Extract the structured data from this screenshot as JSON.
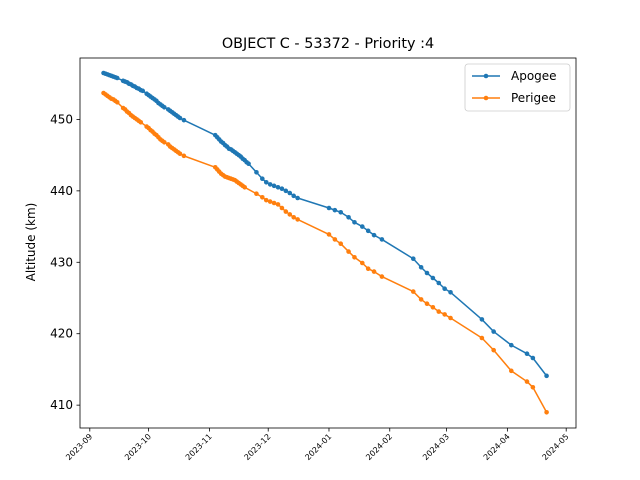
{
  "chart_data": {
    "type": "line",
    "title": "OBJECT C - 53372 - Priority :4",
    "xlabel": "",
    "ylabel": "Altitude (km)",
    "xlim": [
      "2023-08-27",
      "2024-05-06"
    ],
    "ylim": [
      406.8,
      458.6
    ],
    "x_ticks": [
      "2023-09",
      "2023-10",
      "2023-11",
      "2023-12",
      "2024-01",
      "2024-02",
      "2024-03",
      "2024-04",
      "2024-05"
    ],
    "y_ticks": [
      410,
      420,
      430,
      440,
      450
    ],
    "grid": false,
    "legend_position": "top-right",
    "series": [
      {
        "name": "Apogee",
        "color": "#1f77b4",
        "marker": "circle",
        "points": [
          [
            "2023-09-08",
            456.5
          ],
          [
            "2023-09-09",
            456.4
          ],
          [
            "2023-09-10",
            456.3
          ],
          [
            "2023-09-11",
            456.2
          ],
          [
            "2023-09-12",
            456.1
          ],
          [
            "2023-09-13",
            456.0
          ],
          [
            "2023-09-14",
            455.9
          ],
          [
            "2023-09-15",
            455.8
          ],
          [
            "2023-09-18",
            455.4
          ],
          [
            "2023-09-19",
            455.3
          ],
          [
            "2023-09-20",
            455.2
          ],
          [
            "2023-09-21",
            455.0
          ],
          [
            "2023-09-22",
            454.9
          ],
          [
            "2023-09-23",
            454.7
          ],
          [
            "2023-09-24",
            454.6
          ],
          [
            "2023-09-25",
            454.4
          ],
          [
            "2023-09-26",
            454.3
          ],
          [
            "2023-09-27",
            454.1
          ],
          [
            "2023-09-28",
            454.0
          ],
          [
            "2023-09-30",
            453.6
          ],
          [
            "2023-10-01",
            453.4
          ],
          [
            "2023-10-02",
            453.2
          ],
          [
            "2023-10-03",
            453.0
          ],
          [
            "2023-10-04",
            452.8
          ],
          [
            "2023-10-05",
            452.6
          ],
          [
            "2023-10-06",
            452.3
          ],
          [
            "2023-10-07",
            452.1
          ],
          [
            "2023-10-08",
            451.9
          ],
          [
            "2023-10-09",
            451.7
          ],
          [
            "2023-10-11",
            451.4
          ],
          [
            "2023-10-12",
            451.2
          ],
          [
            "2023-10-13",
            451.0
          ],
          [
            "2023-10-14",
            450.8
          ],
          [
            "2023-10-15",
            450.6
          ],
          [
            "2023-10-16",
            450.4
          ],
          [
            "2023-10-17",
            450.2
          ],
          [
            "2023-10-19",
            449.9
          ],
          [
            "2023-11-04",
            447.8
          ],
          [
            "2023-11-05",
            447.5
          ],
          [
            "2023-11-06",
            447.2
          ],
          [
            "2023-11-07",
            446.9
          ],
          [
            "2023-11-08",
            446.7
          ],
          [
            "2023-11-09",
            446.4
          ],
          [
            "2023-11-10",
            446.2
          ],
          [
            "2023-11-11",
            445.9
          ],
          [
            "2023-11-12",
            445.8
          ],
          [
            "2023-11-13",
            445.6
          ],
          [
            "2023-11-14",
            445.4
          ],
          [
            "2023-11-15",
            445.2
          ],
          [
            "2023-11-16",
            445.0
          ],
          [
            "2023-11-17",
            444.8
          ],
          [
            "2023-11-18",
            444.5
          ],
          [
            "2023-11-19",
            444.3
          ],
          [
            "2023-11-20",
            444.0
          ],
          [
            "2023-11-21",
            443.8
          ],
          [
            "2023-11-25",
            442.6
          ],
          [
            "2023-11-28",
            441.7
          ],
          [
            "2023-11-30",
            441.2
          ],
          [
            "2023-12-02",
            440.9
          ],
          [
            "2023-12-04",
            440.7
          ],
          [
            "2023-12-06",
            440.5
          ],
          [
            "2023-12-08",
            440.3
          ],
          [
            "2023-12-10",
            440.0
          ],
          [
            "2023-12-12",
            439.7
          ],
          [
            "2023-12-14",
            439.3
          ],
          [
            "2023-12-16",
            439.0
          ],
          [
            "2024-01-01",
            437.6
          ],
          [
            "2024-01-04",
            437.3
          ],
          [
            "2024-01-07",
            437.0
          ],
          [
            "2024-01-11",
            436.3
          ],
          [
            "2024-01-14",
            435.6
          ],
          [
            "2024-01-18",
            435.0
          ],
          [
            "2024-01-21",
            434.4
          ],
          [
            "2024-01-24",
            433.8
          ],
          [
            "2024-01-28",
            433.2
          ],
          [
            "2024-02-13",
            430.5
          ],
          [
            "2024-02-17",
            429.3
          ],
          [
            "2024-02-20",
            428.5
          ],
          [
            "2024-02-23",
            427.8
          ],
          [
            "2024-02-26",
            427.1
          ],
          [
            "2024-02-29",
            426.3
          ],
          [
            "2024-03-03",
            425.8
          ],
          [
            "2024-03-19",
            422.0
          ],
          [
            "2024-03-25",
            420.3
          ],
          [
            "2024-04-03",
            418.4
          ],
          [
            "2024-04-11",
            417.2
          ],
          [
            "2024-04-14",
            416.6
          ],
          [
            "2024-04-21",
            414.1
          ]
        ]
      },
      {
        "name": "Perigee",
        "color": "#ff7f0e",
        "marker": "circle",
        "points": [
          [
            "2023-09-08",
            453.7
          ],
          [
            "2023-09-09",
            453.5
          ],
          [
            "2023-09-10",
            453.3
          ],
          [
            "2023-09-11",
            453.1
          ],
          [
            "2023-09-12",
            452.9
          ],
          [
            "2023-09-13",
            452.8
          ],
          [
            "2023-09-14",
            452.6
          ],
          [
            "2023-09-15",
            452.4
          ],
          [
            "2023-09-18",
            451.6
          ],
          [
            "2023-09-19",
            451.4
          ],
          [
            "2023-09-20",
            451.1
          ],
          [
            "2023-09-21",
            450.9
          ],
          [
            "2023-09-22",
            450.6
          ],
          [
            "2023-09-23",
            450.4
          ],
          [
            "2023-09-24",
            450.2
          ],
          [
            "2023-09-25",
            450.0
          ],
          [
            "2023-09-26",
            449.8
          ],
          [
            "2023-09-27",
            449.6
          ],
          [
            "2023-09-30",
            449.0
          ],
          [
            "2023-10-01",
            448.8
          ],
          [
            "2023-10-02",
            448.5
          ],
          [
            "2023-10-03",
            448.3
          ],
          [
            "2023-10-04",
            448.0
          ],
          [
            "2023-10-05",
            447.8
          ],
          [
            "2023-10-06",
            447.5
          ],
          [
            "2023-10-07",
            447.2
          ],
          [
            "2023-10-08",
            447.0
          ],
          [
            "2023-10-09",
            446.8
          ],
          [
            "2023-10-11",
            446.5
          ],
          [
            "2023-10-12",
            446.2
          ],
          [
            "2023-10-13",
            446.0
          ],
          [
            "2023-10-14",
            445.8
          ],
          [
            "2023-10-15",
            445.6
          ],
          [
            "2023-10-16",
            445.4
          ],
          [
            "2023-10-17",
            445.2
          ],
          [
            "2023-10-19",
            444.9
          ],
          [
            "2023-11-04",
            443.3
          ],
          [
            "2023-11-05",
            443.0
          ],
          [
            "2023-11-06",
            442.7
          ],
          [
            "2023-11-07",
            442.4
          ],
          [
            "2023-11-08",
            442.2
          ],
          [
            "2023-11-09",
            442.0
          ],
          [
            "2023-11-10",
            441.9
          ],
          [
            "2023-11-11",
            441.8
          ],
          [
            "2023-11-12",
            441.7
          ],
          [
            "2023-11-13",
            441.6
          ],
          [
            "2023-11-14",
            441.5
          ],
          [
            "2023-11-15",
            441.3
          ],
          [
            "2023-11-16",
            441.1
          ],
          [
            "2023-11-17",
            440.9
          ],
          [
            "2023-11-18",
            440.7
          ],
          [
            "2023-11-19",
            440.5
          ],
          [
            "2023-11-25",
            439.6
          ],
          [
            "2023-11-28",
            439.1
          ],
          [
            "2023-11-30",
            438.7
          ],
          [
            "2023-12-02",
            438.5
          ],
          [
            "2023-12-04",
            438.3
          ],
          [
            "2023-12-06",
            438.1
          ],
          [
            "2023-12-08",
            437.6
          ],
          [
            "2023-12-10",
            437.1
          ],
          [
            "2023-12-12",
            436.7
          ],
          [
            "2023-12-14",
            436.3
          ],
          [
            "2023-12-16",
            436.0
          ],
          [
            "2024-01-01",
            433.9
          ],
          [
            "2024-01-04",
            433.2
          ],
          [
            "2024-01-07",
            432.6
          ],
          [
            "2024-01-11",
            431.5
          ],
          [
            "2024-01-14",
            430.7
          ],
          [
            "2024-01-18",
            429.9
          ],
          [
            "2024-01-21",
            429.1
          ],
          [
            "2024-01-24",
            428.7
          ],
          [
            "2024-01-28",
            428.0
          ],
          [
            "2024-02-13",
            425.9
          ],
          [
            "2024-02-17",
            424.8
          ],
          [
            "2024-02-20",
            424.2
          ],
          [
            "2024-02-23",
            423.7
          ],
          [
            "2024-02-26",
            423.1
          ],
          [
            "2024-02-29",
            422.7
          ],
          [
            "2024-03-03",
            422.2
          ],
          [
            "2024-03-19",
            419.4
          ],
          [
            "2024-03-25",
            417.7
          ],
          [
            "2024-04-03",
            414.8
          ],
          [
            "2024-04-11",
            413.3
          ],
          [
            "2024-04-14",
            412.5
          ],
          [
            "2024-04-21",
            409.0
          ]
        ]
      }
    ]
  }
}
